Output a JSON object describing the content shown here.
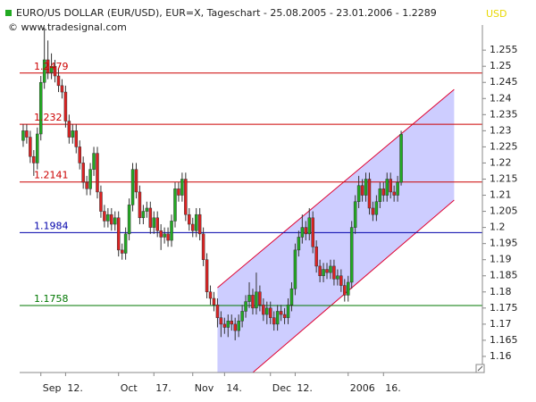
{
  "chart_data": {
    "type": "candlestick",
    "title": "EURO/US DOLLAR (EUR/USD), EUR=X, Tageschart - 25.08.2005 - 23.01.2006 - 1.2289",
    "subtitle": "© www.tradesignal.com",
    "currency": "USD",
    "open": [
      1.227,
      1.23,
      1.228,
      1.222,
      1.22,
      1.229,
      1.245,
      1.252,
      1.248,
      1.25,
      1.247,
      1.244,
      1.242,
      1.233,
      1.228,
      1.23,
      1.225,
      1.22,
      1.214,
      1.212,
      1.218,
      1.223,
      1.211,
      1.205,
      1.202,
      1.204,
      1.201,
      1.203,
      1.193,
      1.192,
      1.198,
      1.207,
      1.218,
      1.211,
      1.203,
      1.205,
      1.206,
      1.2,
      1.203,
      1.199,
      1.197,
      1.198,
      1.196,
      1.202,
      1.212,
      1.21,
      1.215,
      1.204,
      1.201,
      1.199,
      1.204,
      1.198,
      1.19,
      1.18,
      1.178,
      1.176,
      1.172,
      1.17,
      1.169,
      1.171,
      1.17,
      1.168,
      1.171,
      1.174,
      1.177,
      1.179,
      1.175,
      1.18,
      1.176,
      1.173,
      1.175,
      1.172,
      1.17,
      1.174,
      1.173,
      1.172,
      1.176,
      1.181,
      1.193,
      1.197,
      1.2,
      1.198,
      1.203,
      1.194,
      1.188,
      1.185,
      1.187,
      1.186,
      1.188,
      1.184,
      1.185,
      1.182,
      1.179,
      1.183,
      1.2,
      1.208,
      1.213,
      1.21,
      1.215,
      1.206,
      1.204,
      1.208,
      1.212,
      1.21,
      1.215,
      1.211,
      1.21,
      1.214
    ],
    "high": [
      1.232,
      1.232,
      1.23,
      1.224,
      1.231,
      1.247,
      1.262,
      1.258,
      1.254,
      1.252,
      1.249,
      1.246,
      1.244,
      1.235,
      1.232,
      1.232,
      1.227,
      1.222,
      1.216,
      1.22,
      1.225,
      1.225,
      1.213,
      1.207,
      1.206,
      1.206,
      1.205,
      1.205,
      1.195,
      1.2,
      1.209,
      1.22,
      1.22,
      1.213,
      1.207,
      1.208,
      1.208,
      1.205,
      1.205,
      1.201,
      1.2,
      1.2,
      1.204,
      1.214,
      1.214,
      1.217,
      1.217,
      1.206,
      1.203,
      1.206,
      1.206,
      1.2,
      1.192,
      1.182,
      1.18,
      1.178,
      1.174,
      1.172,
      1.173,
      1.173,
      1.172,
      1.173,
      1.176,
      1.179,
      1.183,
      1.181,
      1.186,
      1.182,
      1.178,
      1.177,
      1.177,
      1.174,
      1.176,
      1.176,
      1.175,
      1.178,
      1.183,
      1.195,
      1.199,
      1.204,
      1.202,
      1.206,
      1.205,
      1.196,
      1.19,
      1.189,
      1.189,
      1.19,
      1.19,
      1.187,
      1.187,
      1.184,
      1.185,
      1.202,
      1.21,
      1.216,
      1.215,
      1.217,
      1.217,
      1.208,
      1.21,
      1.214,
      1.214,
      1.217,
      1.217,
      1.213,
      1.216,
      1.23
    ],
    "low": [
      1.225,
      1.226,
      1.22,
      1.216,
      1.218,
      1.227,
      1.243,
      1.246,
      1.246,
      1.245,
      1.242,
      1.24,
      1.231,
      1.226,
      1.226,
      1.223,
      1.218,
      1.212,
      1.21,
      1.21,
      1.216,
      1.209,
      1.203,
      1.2,
      1.2,
      1.199,
      1.199,
      1.191,
      1.19,
      1.19,
      1.196,
      1.205,
      1.209,
      1.201,
      1.201,
      1.203,
      1.198,
      1.198,
      1.197,
      1.193,
      1.195,
      1.194,
      1.194,
      1.2,
      1.208,
      1.208,
      1.202,
      1.199,
      1.197,
      1.197,
      1.196,
      1.188,
      1.178,
      1.176,
      1.174,
      1.169,
      1.166,
      1.167,
      1.166,
      1.168,
      1.165,
      1.166,
      1.169,
      1.172,
      1.175,
      1.173,
      1.173,
      1.174,
      1.171,
      1.17,
      1.17,
      1.168,
      1.168,
      1.171,
      1.17,
      1.17,
      1.174,
      1.179,
      1.191,
      1.195,
      1.196,
      1.196,
      1.192,
      1.186,
      1.183,
      1.183,
      1.184,
      1.184,
      1.182,
      1.182,
      1.18,
      1.177,
      1.177,
      1.181,
      1.198,
      1.206,
      1.208,
      1.208,
      1.204,
      1.202,
      1.202,
      1.206,
      1.208,
      1.208,
      1.209,
      1.208,
      1.208,
      1.213
    ],
    "close": [
      1.23,
      1.228,
      1.222,
      1.22,
      1.229,
      1.245,
      1.252,
      1.248,
      1.25,
      1.247,
      1.244,
      1.242,
      1.233,
      1.228,
      1.23,
      1.225,
      1.22,
      1.214,
      1.212,
      1.218,
      1.223,
      1.211,
      1.205,
      1.202,
      1.204,
      1.201,
      1.203,
      1.193,
      1.192,
      1.198,
      1.207,
      1.218,
      1.211,
      1.203,
      1.205,
      1.206,
      1.2,
      1.203,
      1.199,
      1.197,
      1.198,
      1.196,
      1.202,
      1.212,
      1.21,
      1.215,
      1.204,
      1.201,
      1.199,
      1.204,
      1.198,
      1.19,
      1.18,
      1.178,
      1.176,
      1.172,
      1.17,
      1.169,
      1.171,
      1.17,
      1.168,
      1.171,
      1.174,
      1.177,
      1.179,
      1.175,
      1.18,
      1.176,
      1.173,
      1.175,
      1.172,
      1.17,
      1.174,
      1.173,
      1.172,
      1.176,
      1.181,
      1.193,
      1.197,
      1.2,
      1.198,
      1.203,
      1.194,
      1.188,
      1.185,
      1.187,
      1.186,
      1.188,
      1.184,
      1.185,
      1.182,
      1.179,
      1.183,
      1.2,
      1.208,
      1.213,
      1.21,
      1.215,
      1.206,
      1.204,
      1.208,
      1.212,
      1.21,
      1.215,
      1.211,
      1.21,
      1.214,
      1.2289
    ],
    "up_color": "#22aa22",
    "down_color": "#dd2222",
    "xlim": [
      -1,
      130
    ],
    "xticks": [
      {
        "value": 5,
        "label": "Sep"
      },
      {
        "value": 12,
        "label": "12."
      },
      {
        "value": 27,
        "label": "Oct"
      },
      {
        "value": 37,
        "label": "17."
      },
      {
        "value": 48,
        "label": "Nov"
      },
      {
        "value": 57,
        "label": "14."
      },
      {
        "value": 70,
        "label": "Dec"
      },
      {
        "value": 77,
        "label": "12."
      },
      {
        "value": 92,
        "label": "2006"
      },
      {
        "value": 102,
        "label": "16."
      }
    ],
    "ylim": [
      1.155,
      1.2628
    ],
    "yticks": [
      1.16,
      1.165,
      1.17,
      1.175,
      1.18,
      1.185,
      1.19,
      1.195,
      1.2,
      1.205,
      1.21,
      1.215,
      1.22,
      1.225,
      1.23,
      1.235,
      1.24,
      1.245,
      1.25,
      1.255
    ],
    "levels": [
      {
        "value": 1.2479,
        "color": "#cc0000"
      },
      {
        "value": 1.232,
        "color": "#cc0000"
      },
      {
        "value": 1.2141,
        "color": "#cc0000"
      },
      {
        "value": 1.1984,
        "color": "#0000aa"
      },
      {
        "value": 1.1758,
        "color": "#007700"
      }
    ],
    "channel": {
      "x": [
        55,
        122
      ],
      "upper": [
        1.1813,
        1.2428
      ],
      "lower": [
        1.1456,
        1.2085
      ],
      "color": "#e00030",
      "fill": "#c8c8ff"
    }
  }
}
